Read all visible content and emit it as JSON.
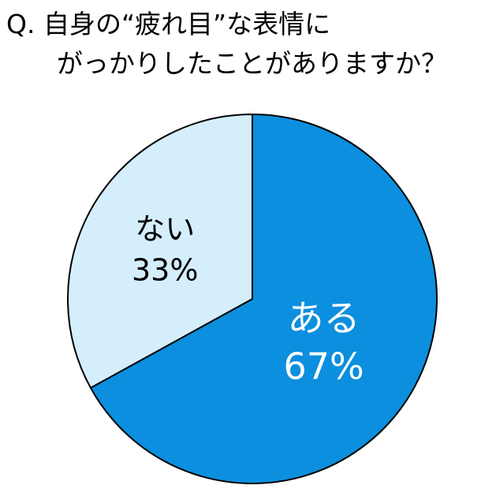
{
  "title_line1": "Q. 自身の“疲れ目”な表情に",
  "title_line2": "がっかりしたことがありますか？",
  "chart_data": {
    "type": "pie",
    "title": "Q. 自身の“疲れ目”な表情にがっかりしたことがありますか？",
    "start": "12 o'clock",
    "direction": "clockwise",
    "slices": [
      {
        "label": "ある",
        "value": 67,
        "value_label": "67%",
        "color": "#0b8fde",
        "text_color": "#ffffff"
      },
      {
        "label": "ない",
        "value": 33,
        "value_label": "33%",
        "color": "#d5eefc",
        "text_color": "#000000"
      }
    ]
  }
}
